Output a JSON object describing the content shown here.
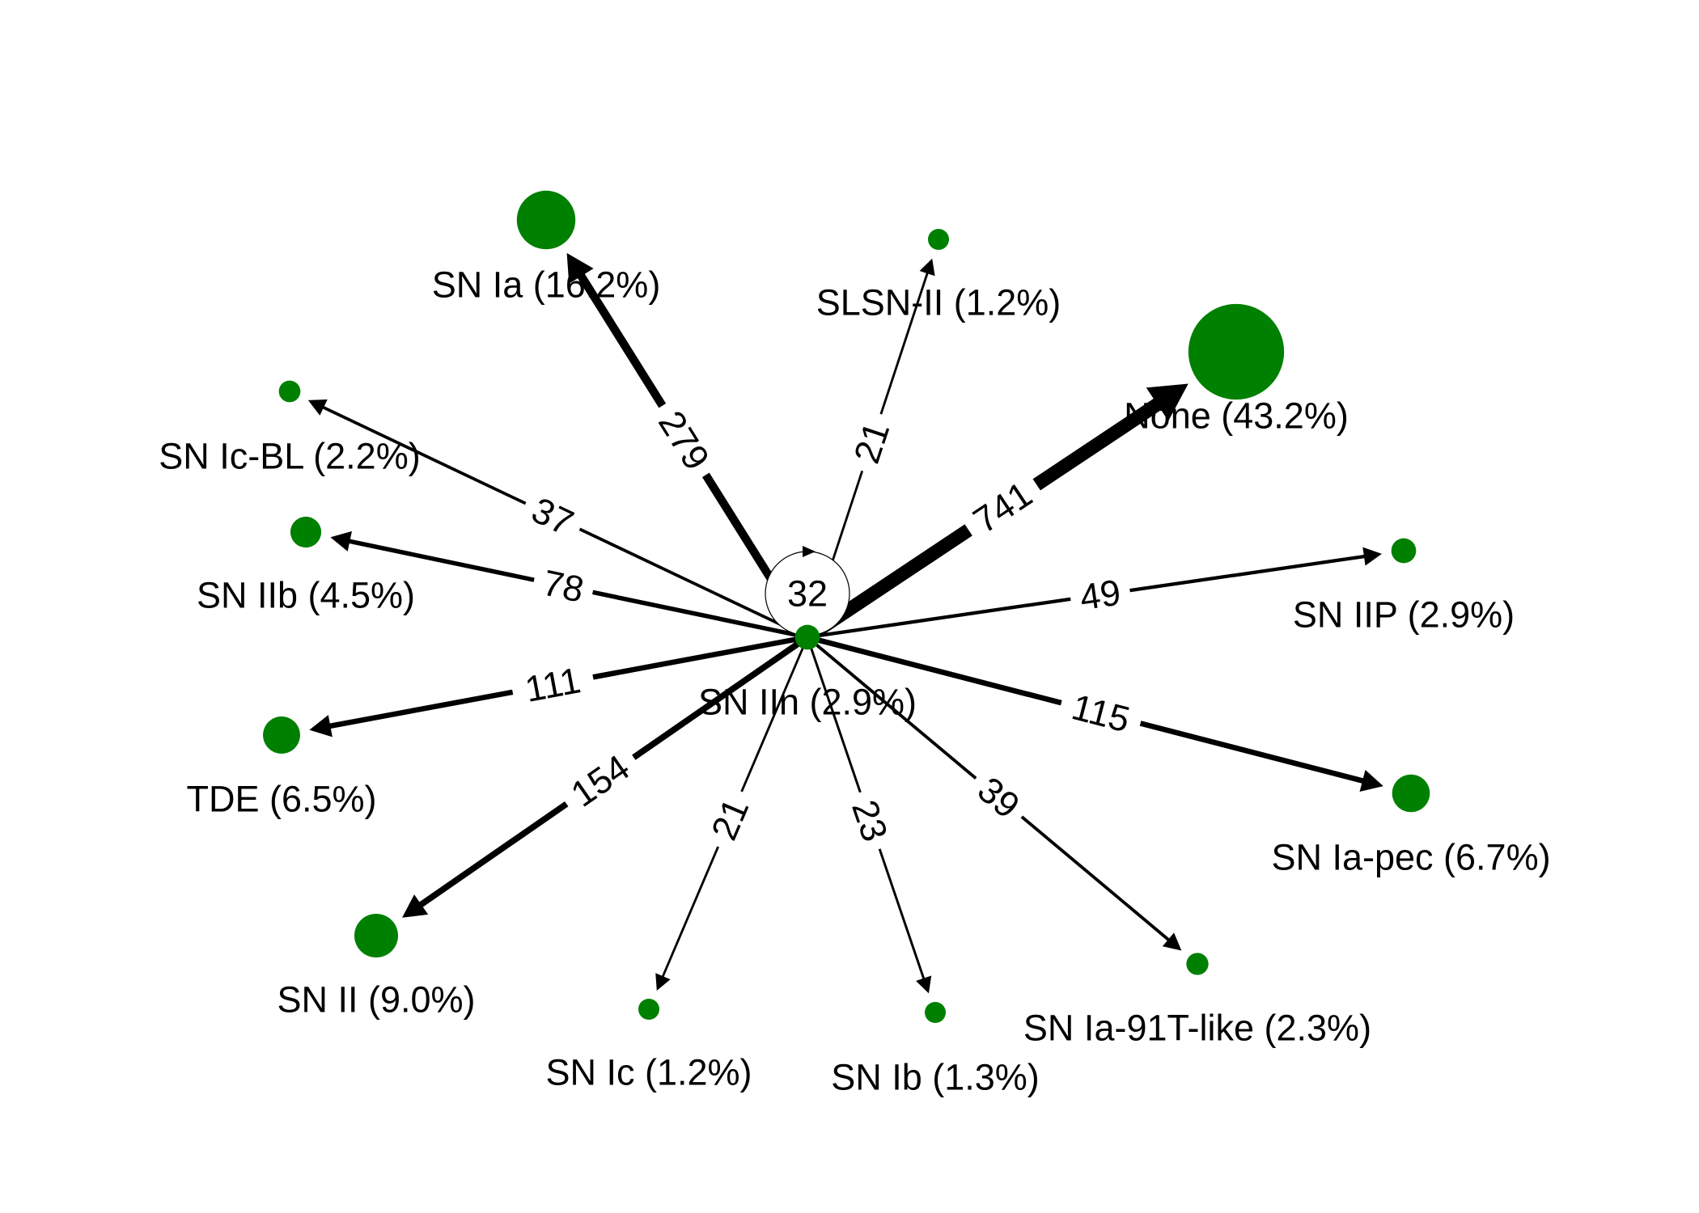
{
  "graph": {
    "center": {
      "id": "SN IIn",
      "label": "SN IIn (2.9%)",
      "percent": 2.9,
      "self_loop": 32
    },
    "node_color": "#008000",
    "edge_color": "#000000",
    "nodes": [
      {
        "id": "SN Ia",
        "label": "SN Ia (16.2%)",
        "percent": 16.2
      },
      {
        "id": "SLSN-II",
        "label": "SLSN-II (1.2%)",
        "percent": 1.2
      },
      {
        "id": "None",
        "label": "None (43.2%)",
        "percent": 43.2
      },
      {
        "id": "SN Ic-BL",
        "label": "SN Ic-BL (2.2%)",
        "percent": 2.2
      },
      {
        "id": "SN IIb",
        "label": "SN IIb (4.5%)",
        "percent": 4.5
      },
      {
        "id": "SN IIP",
        "label": "SN IIP (2.9%)",
        "percent": 2.9
      },
      {
        "id": "TDE",
        "label": "TDE (6.5%)",
        "percent": 6.5
      },
      {
        "id": "SN Ia-pec",
        "label": "SN Ia-pec (6.7%)",
        "percent": 6.7
      },
      {
        "id": "SN II",
        "label": "SN II (9.0%)",
        "percent": 9.0
      },
      {
        "id": "SN Ia-91T-like",
        "label": "SN Ia-91T-like (2.3%)",
        "percent": 2.3
      },
      {
        "id": "SN Ic",
        "label": "SN Ic (1.2%)",
        "percent": 1.2
      },
      {
        "id": "SN Ib",
        "label": "SN Ib (1.3%)",
        "percent": 1.3
      }
    ],
    "edges": [
      {
        "from": "SN IIn",
        "to": "SN Ia",
        "weight": 279
      },
      {
        "from": "SN IIn",
        "to": "SLSN-II",
        "weight": 21
      },
      {
        "from": "SN IIn",
        "to": "None",
        "weight": 741
      },
      {
        "from": "SN IIn",
        "to": "SN Ic-BL",
        "weight": 37
      },
      {
        "from": "SN IIn",
        "to": "SN IIb",
        "weight": 78
      },
      {
        "from": "SN IIn",
        "to": "SN IIP",
        "weight": 49
      },
      {
        "from": "SN IIn",
        "to": "TDE",
        "weight": 111
      },
      {
        "from": "SN IIn",
        "to": "SN Ia-pec",
        "weight": 115
      },
      {
        "from": "SN IIn",
        "to": "SN II",
        "weight": 154
      },
      {
        "from": "SN IIn",
        "to": "SN Ia-91T-like",
        "weight": 39
      },
      {
        "from": "SN IIn",
        "to": "SN Ic",
        "weight": 21
      },
      {
        "from": "SN IIn",
        "to": "SN Ib",
        "weight": 23
      }
    ]
  }
}
